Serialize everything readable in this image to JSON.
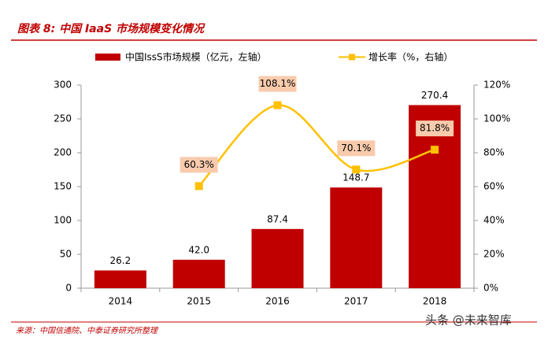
{
  "chart_data": {
    "type": "bar-line",
    "title": "图表 8: 中国 IaaS 市场规模变化情况",
    "source": "来源：中国信通院、中泰证券研究所整理",
    "watermark": "头条 @未来智库",
    "categories": [
      "2014",
      "2015",
      "2016",
      "2017",
      "2018"
    ],
    "series": [
      {
        "name": "中国IssS市场规模（亿元，左轴）",
        "type": "bar",
        "color": "#c00000",
        "values": [
          26.2,
          42.0,
          87.4,
          148.7,
          270.4
        ],
        "value_labels": [
          "26.2",
          "42.0",
          "87.4",
          "148.7",
          "270.4"
        ]
      },
      {
        "name": "增长率（%，右轴）",
        "type": "line",
        "axis": "y2",
        "color": "#ffc000",
        "label_fill": "#f8cbad",
        "values": [
          null,
          60.3,
          108.1,
          70.1,
          81.8
        ],
        "value_labels": [
          null,
          "60.3%",
          "108.1%",
          "70.1%",
          "81.8%"
        ]
      }
    ],
    "ylim": [
      0,
      300
    ],
    "yticks": [
      0,
      50,
      100,
      150,
      200,
      250,
      300
    ],
    "y2lim": [
      0,
      120
    ],
    "y2ticks": [
      {
        "value": 0,
        "label": "0%"
      },
      {
        "value": 20,
        "label": "20%"
      },
      {
        "value": 40,
        "label": "40%"
      },
      {
        "value": 60,
        "label": "60%"
      },
      {
        "value": 80,
        "label": "80%"
      },
      {
        "value": 100,
        "label": "100%"
      },
      {
        "value": 120,
        "label": "120%"
      }
    ],
    "grid": false
  }
}
